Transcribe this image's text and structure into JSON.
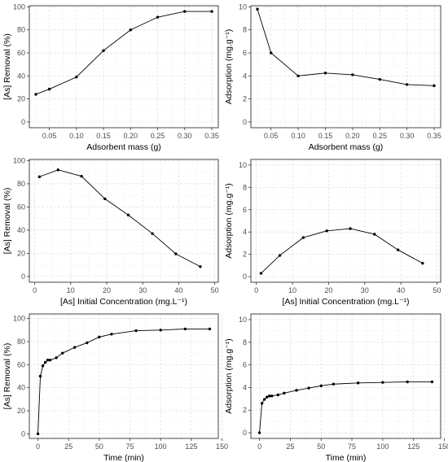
{
  "colors": {
    "line": "#000000",
    "point": "#000000",
    "panel_border": "#333333",
    "grid_major": "#d9d9d9",
    "grid_minor": "#ececec",
    "background": "#ffffff"
  },
  "chart_data": [
    {
      "type": "line",
      "xlabel": "Adsorbent mass (g)",
      "ylabel": "[As] Removal (%)",
      "xlim": [
        0.013,
        0.362
      ],
      "ylim": [
        -5,
        101
      ],
      "xticks": [
        0.05,
        0.1,
        0.15,
        0.2,
        0.25,
        0.3,
        0.35
      ],
      "xtick_labels": [
        "0.05",
        "0.10",
        "0.15",
        "0.20",
        "0.25",
        "0.30",
        "0.35"
      ],
      "yticks": [
        0,
        20,
        40,
        60,
        80,
        100
      ],
      "ytick_labels": [
        "0",
        "20",
        "40",
        "60",
        "80",
        "100"
      ],
      "grid": true,
      "series": [
        {
          "x": [
            0.025,
            0.05,
            0.1,
            0.15,
            0.2,
            0.25,
            0.3,
            0.35
          ],
          "y": [
            24,
            28.5,
            39,
            62,
            80,
            91,
            96,
            96
          ]
        }
      ]
    },
    {
      "type": "line",
      "xlabel": "Adsorbent mass (g)",
      "ylabel": "Adsorption (mg.g⁻¹)",
      "xlim": [
        0.013,
        0.362
      ],
      "ylim": [
        -0.5,
        10.1
      ],
      "xticks": [
        0.05,
        0.1,
        0.15,
        0.2,
        0.25,
        0.3,
        0.35
      ],
      "xtick_labels": [
        "0.05",
        "0.10",
        "0.15",
        "0.20",
        "0.25",
        "0.30",
        "0.35"
      ],
      "yticks": [
        0,
        2,
        4,
        6,
        8,
        10
      ],
      "ytick_labels": [
        "0",
        "2",
        "4",
        "6",
        "8",
        "10"
      ],
      "grid": true,
      "series": [
        {
          "x": [
            0.025,
            0.05,
            0.1,
            0.15,
            0.2,
            0.25,
            0.3,
            0.35
          ],
          "y": [
            9.8,
            6.0,
            4.0,
            4.25,
            4.1,
            3.7,
            3.25,
            3.15
          ]
        }
      ]
    },
    {
      "type": "line",
      "xlabel": "[As] Initial Concentration (mg.L⁻¹)",
      "ylabel": "[As] Removal (%)",
      "xlim": [
        -1.5,
        51
      ],
      "ylim": [
        -5,
        101
      ],
      "xticks": [
        0,
        10,
        20,
        30,
        40,
        50
      ],
      "xtick_labels": [
        "0",
        "10",
        "20",
        "30",
        "40",
        "50"
      ],
      "yticks": [
        0,
        20,
        40,
        60,
        80,
        100
      ],
      "ytick_labels": [
        "0",
        "20",
        "40",
        "60",
        "80",
        "100"
      ],
      "grid": true,
      "series": [
        {
          "x": [
            1.3,
            6.5,
            13,
            19.5,
            26,
            32.7,
            39.2,
            46
          ],
          "y": [
            86,
            92,
            86.5,
            67,
            53,
            37,
            19.5,
            8.5
          ]
        }
      ]
    },
    {
      "type": "line",
      "xlabel": "[As] Initial Concentration (mg.L⁻¹)",
      "ylabel": "Adsorption (mg.g⁻¹)",
      "xlim": [
        -1.5,
        51
      ],
      "ylim": [
        -0.5,
        10.5
      ],
      "xticks": [
        0,
        10,
        20,
        30,
        40,
        50
      ],
      "xtick_labels": [
        "0",
        "10",
        "20",
        "30",
        "40",
        "50"
      ],
      "yticks": [
        0,
        2,
        4,
        6,
        8,
        10
      ],
      "ytick_labels": [
        "0",
        "2",
        "4",
        "6",
        "8",
        "10"
      ],
      "grid": true,
      "series": [
        {
          "x": [
            1.3,
            6.5,
            13,
            19.5,
            26,
            32.7,
            39.2,
            46
          ],
          "y": [
            0.3,
            1.9,
            3.5,
            4.1,
            4.3,
            3.8,
            2.4,
            1.2
          ]
        }
      ]
    },
    {
      "type": "line",
      "xlabel": "Time (min)",
      "ylabel": "[As] Removal (%)",
      "xlim": [
        -7,
        147
      ],
      "ylim": [
        -4,
        104
      ],
      "xticks": [
        0,
        25,
        50,
        75,
        100,
        125,
        150
      ],
      "xtick_labels": [
        "0",
        "25",
        "50",
        "75",
        "100",
        "125",
        "150"
      ],
      "yticks": [
        0,
        20,
        40,
        60,
        80,
        100
      ],
      "ytick_labels": [
        "0",
        "20",
        "40",
        "60",
        "80",
        "100"
      ],
      "grid": true,
      "series": [
        {
          "x": [
            0,
            2,
            4,
            6,
            8,
            10,
            15,
            20,
            30,
            40,
            50,
            60,
            80,
            100,
            120,
            140
          ],
          "y": [
            0,
            50,
            59,
            62,
            64,
            64,
            66,
            70,
            75,
            79,
            84,
            86.5,
            89.5,
            90,
            91,
            91
          ]
        }
      ]
    },
    {
      "type": "line",
      "xlabel": "Time (min)",
      "ylabel": "Adsorption (mg.g⁻¹)",
      "xlim": [
        -7,
        147
      ],
      "ylim": [
        -0.5,
        10.5
      ],
      "xticks": [
        0,
        25,
        50,
        75,
        100,
        125,
        150
      ],
      "xtick_labels": [
        "0",
        "25",
        "50",
        "75",
        "100",
        "125",
        "150"
      ],
      "yticks": [
        0,
        2,
        4,
        6,
        8,
        10
      ],
      "ytick_labels": [
        "0",
        "2",
        "4",
        "6",
        "8",
        "10"
      ],
      "grid": true,
      "series": [
        {
          "x": [
            0,
            2,
            4,
            6,
            8,
            10,
            15,
            20,
            30,
            40,
            50,
            60,
            80,
            100,
            120,
            140
          ],
          "y": [
            0,
            2.6,
            2.95,
            3.15,
            3.25,
            3.25,
            3.35,
            3.5,
            3.75,
            3.95,
            4.15,
            4.3,
            4.4,
            4.45,
            4.5,
            4.5
          ]
        }
      ]
    }
  ]
}
